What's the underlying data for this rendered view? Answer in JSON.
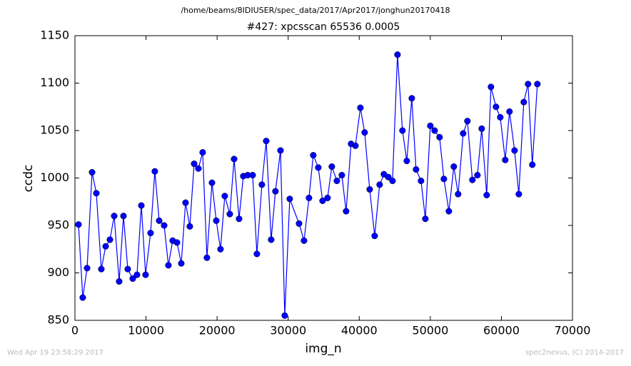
{
  "header": {
    "path": "/home/beams/8IDIUSER/spec_data/2017/Apr2017/jonghun20170418"
  },
  "footer": {
    "left": "Wed Apr 19 23:58:29 2017",
    "right": "spec2nexus, (C) 2014-2017"
  },
  "chart_data": {
    "type": "line",
    "title": "#427: xpcsscan 65536 0.0005",
    "x_label": "img_n",
    "y_label": "ccdc",
    "color": "#0000ff",
    "markers": true,
    "xlim": [
      0,
      70000
    ],
    "xticks": [
      0,
      10000,
      20000,
      30000,
      40000,
      50000,
      60000,
      70000
    ],
    "ylim": [
      850,
      1150
    ],
    "yticks": [
      850,
      900,
      950,
      1000,
      1050,
      1100,
      1150
    ],
    "x": [
      500,
      1100,
      1710,
      2410,
      3010,
      3710,
      4320,
      4920,
      5520,
      6220,
      6830,
      7430,
      8130,
      8730,
      9340,
      9940,
      10640,
      11240,
      11850,
      12550,
      13150,
      13750,
      14360,
      14960,
      15560,
      16160,
      16770,
      17370,
      17970,
      18570,
      19280,
      19880,
      20480,
      21080,
      21790,
      22390,
      23090,
      23690,
      24300,
      25000,
      25600,
      26300,
      26910,
      27610,
      28210,
      28920,
      29520,
      30220,
      31530,
      32230,
      32930,
      33530,
      34240,
      34840,
      35540,
      36140,
      36850,
      37550,
      38150,
      38850,
      39460,
      40160,
      40760,
      41470,
      42170,
      42870,
      43470,
      44080,
      44680,
      45380,
      46080,
      46690,
      47390,
      47990,
      48690,
      49300,
      50000,
      50600,
      51300,
      51910,
      52610,
      53310,
      53910,
      54620,
      55220,
      55920,
      56630,
      57230,
      57930,
      58530,
      59240,
      59840,
      60540,
      61140,
      61850,
      62450,
      63150,
      63750,
      64350,
      65060
    ],
    "values": [
      951,
      874,
      905,
      1006,
      984,
      904,
      928,
      935,
      960,
      891,
      960,
      904,
      894,
      898,
      971,
      898,
      942,
      1007,
      955,
      950,
      908,
      934,
      932,
      910,
      974,
      949,
      1015,
      1010,
      1027,
      916,
      995,
      955,
      925,
      981,
      962,
      1020,
      957,
      1002,
      1003,
      1003,
      920,
      993,
      1039,
      935,
      986,
      1029,
      855,
      978,
      952,
      934,
      979,
      1024,
      1011,
      976,
      979,
      1012,
      997,
      1003,
      965,
      1036,
      1034,
      1074,
      1048,
      988,
      939,
      993,
      1004,
      1001,
      997,
      1130,
      1050,
      1018,
      1084,
      1009,
      997,
      957,
      1055,
      1050,
      1043,
      999,
      965,
      1012,
      983,
      1047,
      1060,
      998,
      1003,
      1052,
      982,
      1096,
      1075,
      1064,
      1019,
      1070,
      1029,
      983,
      1080,
      1099,
      1014,
      1099
    ]
  }
}
